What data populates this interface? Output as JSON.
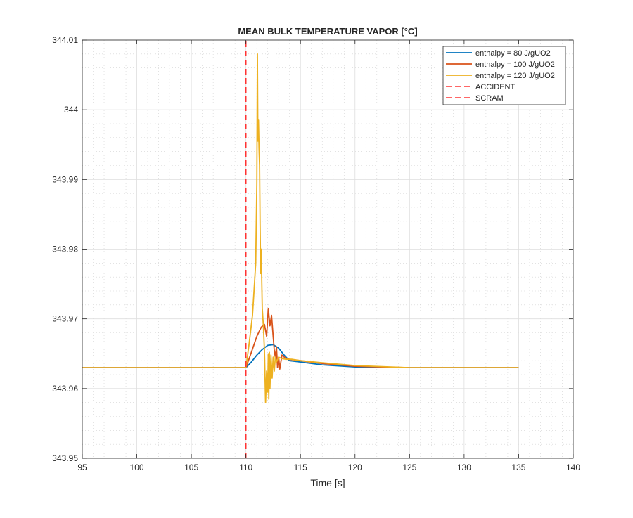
{
  "chart_data": {
    "type": "line",
    "title": "MEAN BULK TEMPERATURE VAPOR [°C]",
    "xlabel": "Time [s]",
    "ylabel": "",
    "xlim": [
      95,
      140
    ],
    "ylim": [
      343.95,
      344.01
    ],
    "xticks": [
      95,
      100,
      105,
      110,
      115,
      120,
      125,
      130,
      135,
      140
    ],
    "yticks": [
      343.95,
      343.96,
      343.97,
      343.98,
      343.99,
      344,
      344.01
    ],
    "xtick_labels": [
      "95",
      "100",
      "105",
      "110",
      "115",
      "120",
      "125",
      "130",
      "135",
      "140"
    ],
    "ytick_labels": [
      "343.95",
      "343.96",
      "343.97",
      "343.98",
      "343.99",
      "344",
      "344.01"
    ],
    "grid": true,
    "minor_grid": true,
    "legend_position": "top-right",
    "series": [
      {
        "name": "enthalpy = 80 J/gUO2",
        "color": "#0072BD",
        "style": "solid",
        "x": [
          95,
          110,
          110.5,
          111,
          111.5,
          112,
          112.5,
          113,
          113.5,
          114,
          115,
          117,
          120,
          125,
          130,
          135
        ],
        "y": [
          343.963,
          343.963,
          343.9638,
          343.9648,
          343.9656,
          343.9662,
          343.9663,
          343.9658,
          343.9648,
          343.964,
          343.9638,
          343.9634,
          343.9631,
          343.963,
          343.963,
          343.963
        ]
      },
      {
        "name": "enthalpy = 100 J/gUO2",
        "color": "#D95319",
        "style": "solid",
        "x": [
          95,
          110,
          110.5,
          111,
          111.4,
          111.7,
          111.9,
          112.05,
          112.2,
          112.35,
          112.5,
          112.6,
          112.7,
          112.8,
          112.9,
          113,
          113.1,
          113.3,
          113.6,
          114,
          115,
          117,
          120,
          125,
          130,
          135
        ],
        "y": [
          343.963,
          343.963,
          343.9652,
          343.9675,
          343.9688,
          343.9692,
          343.9675,
          343.9715,
          343.969,
          343.9705,
          343.9675,
          343.9655,
          343.9645,
          343.966,
          343.963,
          343.9645,
          343.9628,
          343.9648,
          343.9644,
          343.9642,
          343.964,
          343.9636,
          343.9632,
          343.963,
          343.963,
          343.963
        ]
      },
      {
        "name": "enthalpy = 120 J/gUO2",
        "color": "#EDB120",
        "style": "solid",
        "x": [
          95,
          110,
          110.3,
          110.6,
          110.8,
          110.9,
          111,
          111.05,
          111.1,
          111.15,
          111.2,
          111.25,
          111.3,
          111.35,
          111.4,
          111.5,
          111.6,
          111.7,
          111.8,
          111.9,
          112,
          112.05,
          112.1,
          112.15,
          112.2,
          112.3,
          112.4,
          112.5,
          112.6,
          112.7,
          112.8,
          113,
          113.3,
          113.7,
          114.2,
          115,
          117,
          120,
          125,
          130,
          135
        ],
        "y": [
          343.963,
          343.963,
          343.9665,
          343.9705,
          343.9755,
          343.978,
          343.9895,
          344.008,
          343.9955,
          343.9985,
          343.9945,
          343.992,
          343.9835,
          343.9765,
          343.98,
          343.9715,
          343.969,
          343.9655,
          343.958,
          343.9625,
          343.9595,
          343.965,
          343.9585,
          343.9652,
          343.96,
          343.9648,
          343.9615,
          343.9645,
          343.9625,
          343.9645,
          343.9638,
          343.9645,
          343.9643,
          343.9642,
          343.9642,
          343.964,
          343.9637,
          343.9633,
          343.963,
          343.963,
          343.963
        ]
      },
      {
        "name": "ACCIDENT",
        "color": "#FF3333",
        "style": "dashed",
        "x": [
          110,
          110
        ],
        "y": [
          343.95,
          344.01
        ]
      },
      {
        "name": "SCRAM",
        "color": "#FF3333",
        "style": "dashed",
        "x": [
          110,
          110
        ],
        "y": [
          343.95,
          344.01
        ]
      }
    ]
  }
}
